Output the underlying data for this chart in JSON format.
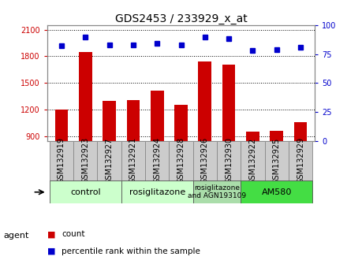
{
  "title": "GDS2453 / 233929_x_at",
  "samples": [
    "GSM132919",
    "GSM132923",
    "GSM132927",
    "GSM132921",
    "GSM132924",
    "GSM132928",
    "GSM132926",
    "GSM132930",
    "GSM132922",
    "GSM132925",
    "GSM132929"
  ],
  "counts": [
    1205,
    1850,
    1295,
    1305,
    1415,
    1255,
    1740,
    1710,
    950,
    960,
    1060
  ],
  "percentiles": [
    82,
    90,
    83,
    83,
    84,
    83,
    90,
    88,
    78,
    79,
    81
  ],
  "ylim_left": [
    850,
    2150
  ],
  "ylim_right": [
    0,
    100
  ],
  "yticks_left": [
    900,
    1200,
    1500,
    1800,
    2100
  ],
  "yticks_right": [
    0,
    25,
    50,
    75,
    100
  ],
  "bar_color": "#cc0000",
  "dot_color": "#0000cc",
  "groups": [
    {
      "label": "control",
      "start": 0,
      "end": 3,
      "color": "#ccffcc"
    },
    {
      "label": "rosiglitazone",
      "start": 3,
      "end": 6,
      "color": "#ccffcc"
    },
    {
      "label": "rosiglitazone\nand AGN193109",
      "start": 6,
      "end": 8,
      "color": "#aaddaa"
    },
    {
      "label": "AM580",
      "start": 8,
      "end": 11,
      "color": "#44dd44"
    }
  ],
  "agent_label": "agent",
  "legend_count_label": "count",
  "legend_pct_label": "percentile rank within the sample",
  "background_color": "#ffffff",
  "grid_color": "#000000",
  "tick_color_left": "#cc0000",
  "tick_color_right": "#0000cc",
  "bar_width": 0.55,
  "title_fontsize": 10,
  "tick_fontsize": 7,
  "sample_box_color": "#cccccc",
  "sample_box_edgecolor": "#888888"
}
